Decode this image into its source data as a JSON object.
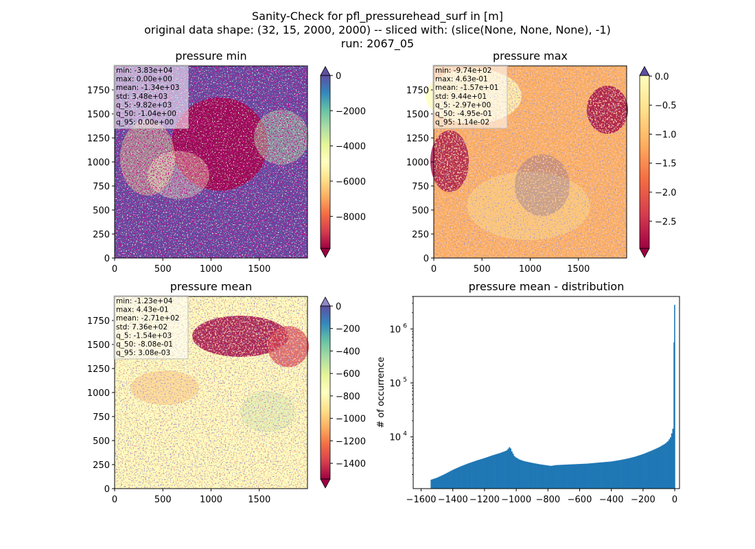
{
  "title_lines": [
    "Sanity-Check for pfl_pressurehead_surf in [m]",
    "original data shape: (32, 15, 2000, 2000) -- sliced with: (slice(None, None, None), -1)",
    "run: 2067_05"
  ],
  "chart_data": [
    {
      "type": "heatmap",
      "title": "pressure min",
      "x_ticks": [
        "0",
        "500",
        "1000",
        "1500"
      ],
      "y_ticks": [
        "0",
        "250",
        "500",
        "750",
        "1000",
        "1250",
        "1500",
        "1750"
      ],
      "colorbar_ticks": [
        "0",
        "−2000",
        "−4000",
        "−6000",
        "−8000"
      ],
      "colorbar_range": [
        -9820,
        0
      ],
      "colormap": "Spectral",
      "stats": [
        "min: -3.83e+04",
        "max: 0.00e+00",
        "mean: -1.34e+03",
        "std: 3.48e+03",
        "q_5: -9.82e+03",
        "q_50: -1.04e+00",
        "q_95: 0.00e+00"
      ]
    },
    {
      "type": "heatmap",
      "title": "pressure max",
      "x_ticks": [
        "0",
        "500",
        "1000",
        "1500"
      ],
      "y_ticks": [
        "0",
        "250",
        "500",
        "750",
        "1000",
        "1250",
        "1500",
        "1750"
      ],
      "colorbar_ticks": [
        "0.0",
        "−0.5",
        "−1.0",
        "−1.5",
        "−2.0",
        "−2.5"
      ],
      "colorbar_range": [
        -2.97,
        0.0114
      ],
      "colormap": "Spectral",
      "stats": [
        "min: -9.74e+02",
        "max: 4.63e-01",
        "mean: -1.57e+01",
        "std: 9.44e+01",
        "q_5: -2.97e+00",
        "q_50: -4.95e-01",
        "q_95: 1.14e-02"
      ]
    },
    {
      "type": "heatmap",
      "title": "pressure mean",
      "x_ticks": [
        "0",
        "500",
        "1000",
        "1500"
      ],
      "y_ticks": [
        "0",
        "250",
        "500",
        "750",
        "1000",
        "1250",
        "1500",
        "1750"
      ],
      "colorbar_ticks": [
        "0",
        "−200",
        "−400",
        "−600",
        "−800",
        "−1000",
        "−1200",
        "−1400"
      ],
      "colorbar_range": [
        -1540,
        0.003
      ],
      "colormap": "Spectral",
      "stats": [
        "min: -1.23e+04",
        "max: 4.43e-01",
        "mean: -2.71e+02",
        "std: 7.36e+02",
        "q_5: -1.54e+03",
        "q_50: -8.08e-01",
        "q_95: 3.08e-03"
      ]
    },
    {
      "type": "bar",
      "title": "pressure mean - distribution",
      "xlabel": "",
      "ylabel": "# of occurrence",
      "yscale": "log",
      "ylim": [
        1100,
        4000000
      ],
      "xlim": [
        -1650,
        30
      ],
      "x_ticks": [
        "−1600",
        "−1400",
        "−1200",
        "−1000",
        "−800",
        "−600",
        "−400",
        "−200",
        "0"
      ],
      "x_tick_values": [
        -1600,
        -1400,
        -1200,
        -1000,
        -800,
        -600,
        -400,
        -200,
        0
      ],
      "y_ticks": [
        "10",
        "10",
        "10"
      ],
      "y_tick_exponents": [
        "4",
        "5",
        "6"
      ],
      "y_tick_values": [
        10000,
        100000,
        1000000
      ],
      "bar_color": "#1f77b4",
      "histogram_points": [
        [
          -1540,
          1600
        ],
        [
          -1500,
          1750
        ],
        [
          -1450,
          2050
        ],
        [
          -1400,
          2450
        ],
        [
          -1350,
          2850
        ],
        [
          -1300,
          3250
        ],
        [
          -1250,
          3650
        ],
        [
          -1200,
          4050
        ],
        [
          -1150,
          4550
        ],
        [
          -1100,
          5050
        ],
        [
          -1060,
          5600
        ],
        [
          -1040,
          6600
        ],
        [
          -1030,
          5500
        ],
        [
          -1010,
          4300
        ],
        [
          -980,
          3800
        ],
        [
          -950,
          3550
        ],
        [
          -900,
          3300
        ],
        [
          -850,
          3100
        ],
        [
          -800,
          2950
        ],
        [
          -780,
          2900
        ],
        [
          -750,
          3000
        ],
        [
          -700,
          3050
        ],
        [
          -650,
          3100
        ],
        [
          -600,
          3150
        ],
        [
          -550,
          3200
        ],
        [
          -500,
          3300
        ],
        [
          -450,
          3400
        ],
        [
          -400,
          3500
        ],
        [
          -350,
          3700
        ],
        [
          -300,
          3950
        ],
        [
          -250,
          4300
        ],
        [
          -200,
          4800
        ],
        [
          -150,
          5500
        ],
        [
          -100,
          6400
        ],
        [
          -60,
          7500
        ],
        [
          -40,
          8500
        ],
        [
          -25,
          10000
        ],
        [
          -15,
          13000
        ],
        [
          -8,
          15500
        ],
        [
          -2,
          2800000
        ]
      ]
    }
  ]
}
